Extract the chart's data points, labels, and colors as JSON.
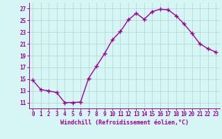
{
  "x": [
    0,
    1,
    2,
    3,
    4,
    5,
    6,
    7,
    8,
    9,
    10,
    11,
    12,
    13,
    14,
    15,
    16,
    17,
    18,
    19,
    20,
    21,
    22,
    23
  ],
  "y": [
    14.8,
    13.2,
    13.0,
    12.7,
    11.0,
    11.0,
    11.1,
    15.1,
    17.2,
    19.3,
    21.7,
    23.1,
    25.1,
    26.2,
    25.2,
    26.5,
    26.9,
    26.8,
    25.8,
    24.4,
    22.8,
    21.0,
    20.2,
    19.6
  ],
  "line_color": "#990099",
  "marker": "+",
  "marker_size": 4,
  "marker_lw": 1.0,
  "bg_color": "#d6f5f5",
  "grid_color": "#b8d8d8",
  "xlabel": "Windchill (Refroidissement éolien,°C)",
  "xlabel_fontsize": 6,
  "ylim": [
    10,
    28
  ],
  "yticks": [
    11,
    13,
    15,
    17,
    19,
    21,
    23,
    25,
    27
  ],
  "xticks": [
    0,
    1,
    2,
    3,
    4,
    5,
    6,
    7,
    8,
    9,
    10,
    11,
    12,
    13,
    14,
    15,
    16,
    17,
    18,
    19,
    20,
    21,
    22,
    23
  ],
  "xlim": [
    -0.5,
    23.5
  ],
  "tick_fontsize": 5.5,
  "tick_color": "#990099",
  "label_color": "#990099",
  "line_width": 1.0
}
